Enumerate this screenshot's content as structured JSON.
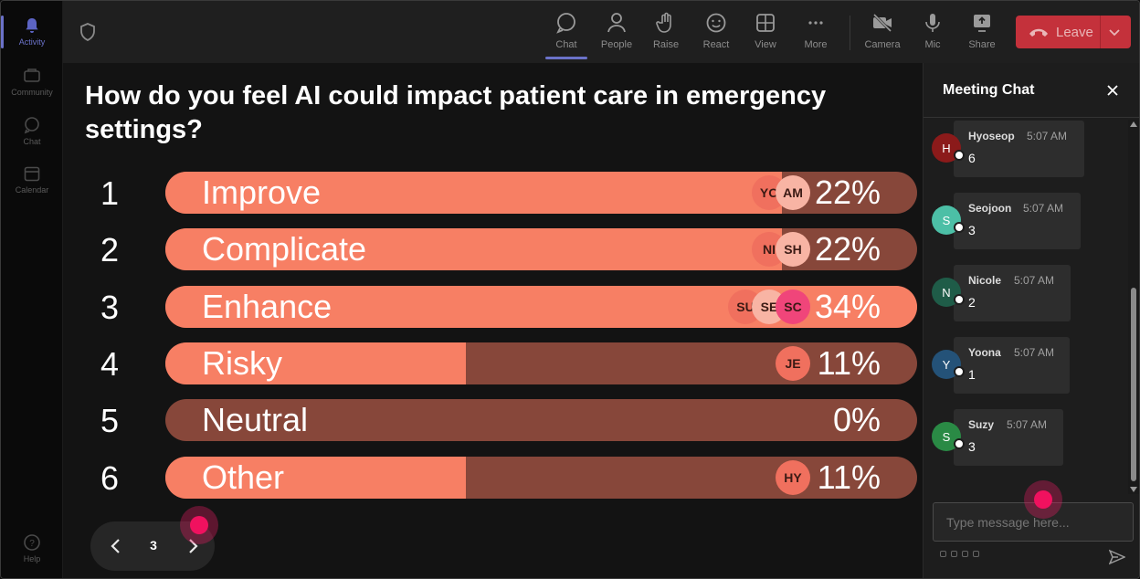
{
  "rail": {
    "items": [
      {
        "label": "Activity",
        "active": true
      },
      {
        "label": "Community",
        "active": false
      },
      {
        "label": "Chat",
        "active": false
      },
      {
        "label": "Calendar",
        "active": false
      }
    ],
    "help": "Help"
  },
  "toolbar": {
    "chat": "Chat",
    "people": "People",
    "raise": "Raise",
    "react": "React",
    "view": "View",
    "more": "More",
    "camera": "Camera",
    "mic": "Mic",
    "share": "Share",
    "leave": "Leave"
  },
  "poll": {
    "question": "How do you feel AI could impact patient care in emergency settings?",
    "options": [
      {
        "num": "1",
        "label": "Improve",
        "percent": "22%",
        "fill_fraction": 0.82,
        "avatars": [
          "YO",
          "AM"
        ]
      },
      {
        "num": "2",
        "label": "Complicate",
        "percent": "22%",
        "fill_fraction": 0.82,
        "avatars": [
          "NI",
          "SH"
        ]
      },
      {
        "num": "3",
        "label": "Enhance",
        "percent": "34%",
        "fill_fraction": 1.0,
        "avatars": [
          "SU",
          "SE",
          "SC"
        ]
      },
      {
        "num": "4",
        "label": "Risky",
        "percent": "11%",
        "fill_fraction": 0.4,
        "avatars": [
          "JE"
        ]
      },
      {
        "num": "5",
        "label": "Neutral",
        "percent": "0%",
        "fill_fraction": 0.0,
        "avatars": []
      },
      {
        "num": "6",
        "label": "Other",
        "percent": "11%",
        "fill_fraction": 0.4,
        "avatars": [
          "HY"
        ]
      }
    ],
    "page": "3"
  },
  "chat": {
    "title": "Meeting Chat",
    "messages": [
      {
        "initial": "H",
        "name": "Hyoseop",
        "time": "5:07 AM",
        "text": "6",
        "color": "#8b1a1a"
      },
      {
        "initial": "S",
        "name": "Seojoon",
        "time": "5:07 AM",
        "text": "3",
        "color": "#4cbfa6"
      },
      {
        "initial": "N",
        "name": "Nicole",
        "time": "5:07 AM",
        "text": "2",
        "color": "#1f5c48"
      },
      {
        "initial": "Y",
        "name": "Yoona",
        "time": "5:07 AM",
        "text": "1",
        "color": "#245278"
      },
      {
        "initial": "S",
        "name": "Suzy",
        "time": "5:07 AM",
        "text": "3",
        "color": "#2a8a45"
      }
    ],
    "compose_placeholder": "Type message here..."
  },
  "colors": {
    "accent": "#6b72c9",
    "bar_fill": "#f77f64",
    "bar_track": "#87473a",
    "leave": "#c4313b"
  }
}
